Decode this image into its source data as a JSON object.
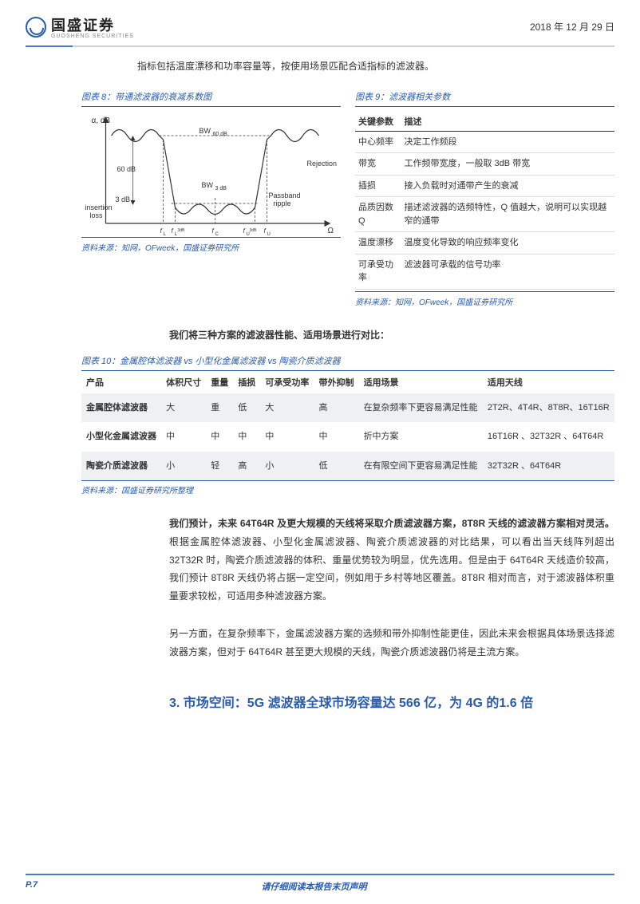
{
  "header": {
    "logo_text": "国盛证券",
    "logo_sub": "GUOSHENG SECURITIES",
    "date": "2018 年 12 月 29 日"
  },
  "intro": "指标包括温度漂移和功率容量等，按使用场景匹配合适指标的滤波器。",
  "fig8": {
    "caption": "图表 8：带通滤波器的衰减系数图",
    "source": "资料来源：知网，OFweek，国盛证券研究所",
    "chart": {
      "type": "line",
      "y_label": "α, dB",
      "x_label": "Ω",
      "annotations": [
        "BW60 dB",
        "BW3 dB",
        "60 dB",
        "3 dB",
        "insertion loss",
        "Passband ripple",
        "Rejection"
      ],
      "x_ticks": [
        "fL",
        "fL3dB",
        "fC",
        "fU3dB",
        "fU"
      ],
      "line_color": "#333333",
      "axis_color": "#333333",
      "background_color": "#ffffff",
      "line_width": 1.2
    }
  },
  "fig9": {
    "caption": "图表 9：滤波器相关参数",
    "source": "资料来源：知网，OFweek，国盛证券研究所",
    "headers": [
      "关键参数",
      "描述"
    ],
    "rows": [
      [
        "中心频率",
        "决定工作频段"
      ],
      [
        "带宽",
        "工作频带宽度，一般取 3dB 带宽"
      ],
      [
        "插损",
        "接入负载时对通带产生的衰减"
      ],
      [
        "品质因数 Q",
        "描述滤波器的选频特性，Q 值越大，说明可以实现越窄的通带"
      ],
      [
        "温度漂移",
        "温度变化导致的响应频率变化"
      ],
      [
        "可承受功率",
        "滤波器可承载的信号功率"
      ]
    ]
  },
  "compare_intro": "我们将三种方案的滤波器性能、适用场景进行对比：",
  "fig10": {
    "caption": "图表 10：金属腔体滤波器 vs 小型化金属滤波器 vs 陶瓷介质滤波器",
    "source": "资料来源：国盛证券研究所整理",
    "headers": [
      "产品",
      "体积尺寸",
      "重量",
      "插损",
      "可承受功率",
      "带外抑制",
      "适用场景",
      "适用天线"
    ],
    "rows": [
      {
        "shaded": true,
        "cells": [
          "金属腔体滤波器",
          "大",
          "重",
          "低",
          "大",
          "高",
          "在复杂频率下更容易满足性能",
          "2T2R、4T4R、8T8R、16T16R"
        ]
      },
      {
        "shaded": false,
        "cells": [
          "小型化金属滤波器",
          "中",
          "中",
          "中",
          "中",
          "中",
          "折中方案",
          "16T16R 、32T32R 、64T64R"
        ]
      },
      {
        "shaded": true,
        "cells": [
          "陶瓷介质滤波器",
          "小",
          "轻",
          "高",
          "小",
          "低",
          "在有限空间下更容易满足性能",
          "32T32R 、64T64R"
        ]
      }
    ],
    "shaded_bg": "#eef0f2"
  },
  "para1": {
    "bold": "我们预计，未来 64T64R 及更大规模的天线将采取介质滤波器方案，8T8R 天线的滤波器方案相对灵活。",
    "rest": "根据金属腔体滤波器、小型化金属滤波器、陶瓷介质滤波器的对比结果，可以看出当天线阵列超出 32T32R 时，陶瓷介质滤波器的体积、重量优势较为明显，优先选用。但是由于 64T64R 天线造价较高，我们预计 8T8R 天线仍将占据一定空间，例如用于乡村等地区覆盖。8T8R 相对而言，对于滤波器体积重量要求较松，可适用多种滤波器方案。"
  },
  "para2": "另一方面，在复杂频率下，金属滤波器方案的选频和带外抑制性能更佳，因此未来会根据具体场景选择滤波器方案，但对于 64T64R 甚至更大规模的天线，陶瓷介质滤波器仍将是主流方案。",
  "section3": "3. 市场空间：5G 滤波器全球市场容量达 566 亿，为 4G 的1.6 倍",
  "footer": {
    "page": "P.7",
    "disclaimer": "请仔细阅读本报告末页声明"
  },
  "colors": {
    "brand_blue": "#2a5ca8",
    "line_grey": "#d0d0d0",
    "text": "#333333",
    "shaded_row": "#eef0f2"
  }
}
